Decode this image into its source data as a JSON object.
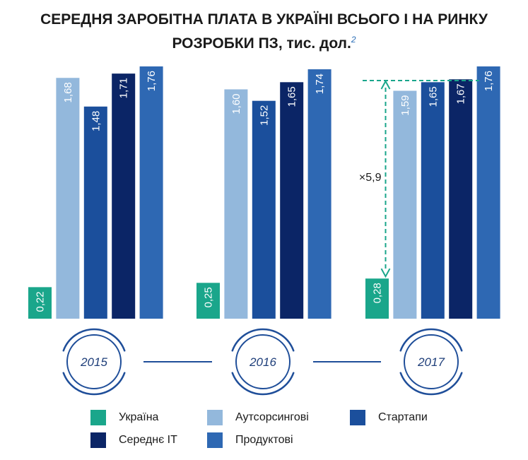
{
  "title": {
    "line1": "СЕРЕДНЯ ЗАРОБІТНА ПЛАТА В УКРАЇНІ ВСЬОГО І НА РИНКУ",
    "line2": "РОЗРОБКИ ПЗ, тис. дол.",
    "footnote": "2"
  },
  "colors": {
    "Україна": "#1aa68b",
    "Аутсорсингові": "#93b8dc",
    "Стартапи": "#1b4f9c",
    "Середнє IT": "#0b2566",
    "Продуктові": "#2e68b3",
    "ring": "#1f4e99",
    "annotation": "#1aa68b"
  },
  "legend": [
    {
      "label": "Україна",
      "color": "#1aa68b"
    },
    {
      "label": "Аутсорсингові",
      "color": "#93b8dc"
    },
    {
      "label": "Стартапи",
      "color": "#1b4f9c"
    },
    {
      "label": "Середнє IT",
      "color": "#0b2566"
    },
    {
      "label": "Продуктові",
      "color": "#2e68b3"
    }
  ],
  "annotation": {
    "text": "×5,9",
    "year": "2017"
  },
  "chart_data": {
    "type": "bar",
    "title": "СЕРЕДНЯ ЗАРОБІТНА ПЛАТА В УКРАЇНІ ВСЬОГО І НА РИНКУ РОЗРОБКИ ПЗ, тис. дол.",
    "categories": [
      "2015",
      "2016",
      "2017"
    ],
    "series": [
      {
        "name": "Україна",
        "values": [
          0.22,
          0.25,
          0.28
        ],
        "labels": [
          "0,22",
          "0,25",
          "0,28"
        ]
      },
      {
        "name": "Аутсорсингові",
        "values": [
          1.68,
          1.6,
          1.59
        ],
        "labels": [
          "1,68",
          "1,60",
          "1,59"
        ]
      },
      {
        "name": "Стартапи",
        "values": [
          1.48,
          1.52,
          1.65
        ],
        "labels": [
          "1,48",
          "1,52",
          "1,65"
        ]
      },
      {
        "name": "Середнє IT",
        "values": [
          1.71,
          1.65,
          1.67
        ],
        "labels": [
          "1,71",
          "1,65",
          "1,67"
        ]
      },
      {
        "name": "Продуктові",
        "values": [
          1.76,
          1.74,
          1.76
        ],
        "labels": [
          "1,76",
          "1,74",
          "1,76"
        ]
      }
    ],
    "ylim": [
      0,
      1.76
    ],
    "grid": false,
    "legend_position": "bottom"
  }
}
